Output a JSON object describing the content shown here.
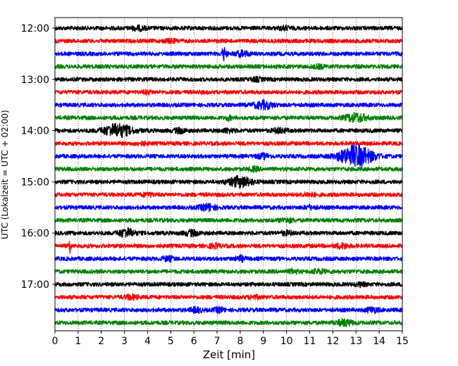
{
  "chart_data": {
    "type": "line",
    "title": "",
    "xlabel": "Zeit  [min]",
    "ylabel": "UTC (Lokalzeit = UTC + 02:00)",
    "xlim": [
      0,
      15
    ],
    "x_ticks": [
      0,
      1,
      2,
      3,
      4,
      5,
      6,
      7,
      8,
      9,
      10,
      11,
      12,
      13,
      14,
      15
    ],
    "x_tick_labels": [
      "0",
      "1",
      "2",
      "3",
      "4",
      "5",
      "6",
      "7",
      "8",
      "9",
      "10",
      "11",
      "12",
      "13",
      "14",
      "15"
    ],
    "y_tick_labels": [
      "12:00",
      "13:00",
      "14:00",
      "15:00",
      "16:00",
      "17:00"
    ],
    "grid": "vertical dotted",
    "colors": [
      "#000000",
      "#ff0000",
      "#0000ff",
      "#008000"
    ],
    "trace_interval_minutes": 15,
    "traces": [
      {
        "start": "12:00",
        "color": "#000000",
        "events": [
          {
            "t": 3.6,
            "amp": 0.25,
            "dur": 0.3
          },
          {
            "t": 9.9,
            "amp": 0.22,
            "dur": 0.25
          }
        ]
      },
      {
        "start": "12:15",
        "color": "#ff0000",
        "events": [
          {
            "t": 5.0,
            "amp": 0.18,
            "dur": 0.3
          }
        ]
      },
      {
        "start": "12:30",
        "color": "#0000ff",
        "events": [
          {
            "t": 7.3,
            "amp": 0.95,
            "dur": 0.1
          },
          {
            "t": 8.1,
            "amp": 0.35,
            "dur": 0.3
          }
        ]
      },
      {
        "start": "12:45",
        "color": "#008000",
        "events": [
          {
            "t": 11.4,
            "amp": 0.2,
            "dur": 0.25
          }
        ]
      },
      {
        "start": "13:00",
        "color": "#000000",
        "events": [
          {
            "t": 8.7,
            "amp": 0.2,
            "dur": 0.25
          }
        ]
      },
      {
        "start": "13:15",
        "color": "#ff0000",
        "events": [
          {
            "t": 4.0,
            "amp": 0.2,
            "dur": 0.2
          }
        ]
      },
      {
        "start": "13:30",
        "color": "#0000ff",
        "events": [
          {
            "t": 9.0,
            "amp": 0.55,
            "dur": 0.4
          }
        ]
      },
      {
        "start": "13:45",
        "color": "#008000",
        "events": [
          {
            "t": 7.5,
            "amp": 0.3,
            "dur": 0.1
          },
          {
            "t": 13.0,
            "amp": 0.6,
            "dur": 0.45
          }
        ]
      },
      {
        "start": "14:00",
        "color": "#000000",
        "events": [
          {
            "t": 2.7,
            "amp": 0.95,
            "dur": 0.6
          },
          {
            "t": 5.4,
            "amp": 0.3,
            "dur": 0.25
          },
          {
            "t": 7.5,
            "amp": 0.25,
            "dur": 0.25
          },
          {
            "t": 9.7,
            "amp": 0.3,
            "dur": 0.3
          }
        ]
      },
      {
        "start": "14:15",
        "color": "#ff0000",
        "events": [
          {
            "t": 3.7,
            "amp": 0.2,
            "dur": 0.25
          }
        ]
      },
      {
        "start": "14:30",
        "color": "#0000ff",
        "events": [
          {
            "t": 9.0,
            "amp": 0.3,
            "dur": 0.3
          },
          {
            "t": 13.0,
            "amp": 1.6,
            "dur": 0.7
          }
        ]
      },
      {
        "start": "14:45",
        "color": "#008000",
        "events": [
          {
            "t": 8.6,
            "amp": 0.25,
            "dur": 0.2
          }
        ]
      },
      {
        "start": "15:00",
        "color": "#000000",
        "events": [
          {
            "t": 8.0,
            "amp": 0.75,
            "dur": 0.5
          }
        ]
      },
      {
        "start": "15:15",
        "color": "#ff0000",
        "events": [
          {
            "t": 4.0,
            "amp": 0.2,
            "dur": 0.25
          },
          {
            "t": 11.0,
            "amp": 0.2,
            "dur": 0.3
          }
        ]
      },
      {
        "start": "15:30",
        "color": "#0000ff",
        "events": [
          {
            "t": 6.6,
            "amp": 0.45,
            "dur": 0.35
          },
          {
            "t": 11.0,
            "amp": 0.2,
            "dur": 0.25
          }
        ]
      },
      {
        "start": "15:45",
        "color": "#008000",
        "events": [
          {
            "t": 10.0,
            "amp": 0.25,
            "dur": 0.3
          }
        ]
      },
      {
        "start": "16:00",
        "color": "#000000",
        "events": [
          {
            "t": 3.1,
            "amp": 0.6,
            "dur": 0.35
          },
          {
            "t": 5.9,
            "amp": 0.35,
            "dur": 0.3
          },
          {
            "t": 10.0,
            "amp": 0.25,
            "dur": 0.25
          }
        ]
      },
      {
        "start": "16:15",
        "color": "#ff0000",
        "events": [
          {
            "t": 0.65,
            "amp": 1.4,
            "dur": 0.04
          },
          {
            "t": 6.9,
            "amp": 0.25,
            "dur": 0.25
          },
          {
            "t": 12.4,
            "amp": 0.3,
            "dur": 0.3
          }
        ]
      },
      {
        "start": "16:30",
        "color": "#0000ff",
        "events": [
          {
            "t": 4.9,
            "amp": 0.25,
            "dur": 0.3
          },
          {
            "t": 8.0,
            "amp": 0.35,
            "dur": 0.2
          }
        ]
      },
      {
        "start": "16:45",
        "color": "#008000",
        "events": [
          {
            "t": 10.3,
            "amp": 0.25,
            "dur": 0.2
          },
          {
            "t": 11.4,
            "amp": 0.25,
            "dur": 0.3
          }
        ]
      },
      {
        "start": "17:00",
        "color": "#000000",
        "events": [
          {
            "t": 13.2,
            "amp": 0.2,
            "dur": 0.25
          }
        ]
      },
      {
        "start": "17:15",
        "color": "#ff0000",
        "events": [
          {
            "t": 3.3,
            "amp": 0.3,
            "dur": 0.25
          },
          {
            "t": 8.6,
            "amp": 0.2,
            "dur": 0.25
          }
        ]
      },
      {
        "start": "17:30",
        "color": "#0000ff",
        "events": [
          {
            "t": 6.1,
            "amp": 0.3,
            "dur": 0.25
          },
          {
            "t": 7.1,
            "amp": 0.35,
            "dur": 0.2
          },
          {
            "t": 13.7,
            "amp": 0.35,
            "dur": 0.25
          }
        ]
      },
      {
        "start": "17:45",
        "color": "#008000",
        "events": [
          {
            "t": 12.5,
            "amp": 0.4,
            "dur": 0.35
          }
        ]
      }
    ]
  }
}
